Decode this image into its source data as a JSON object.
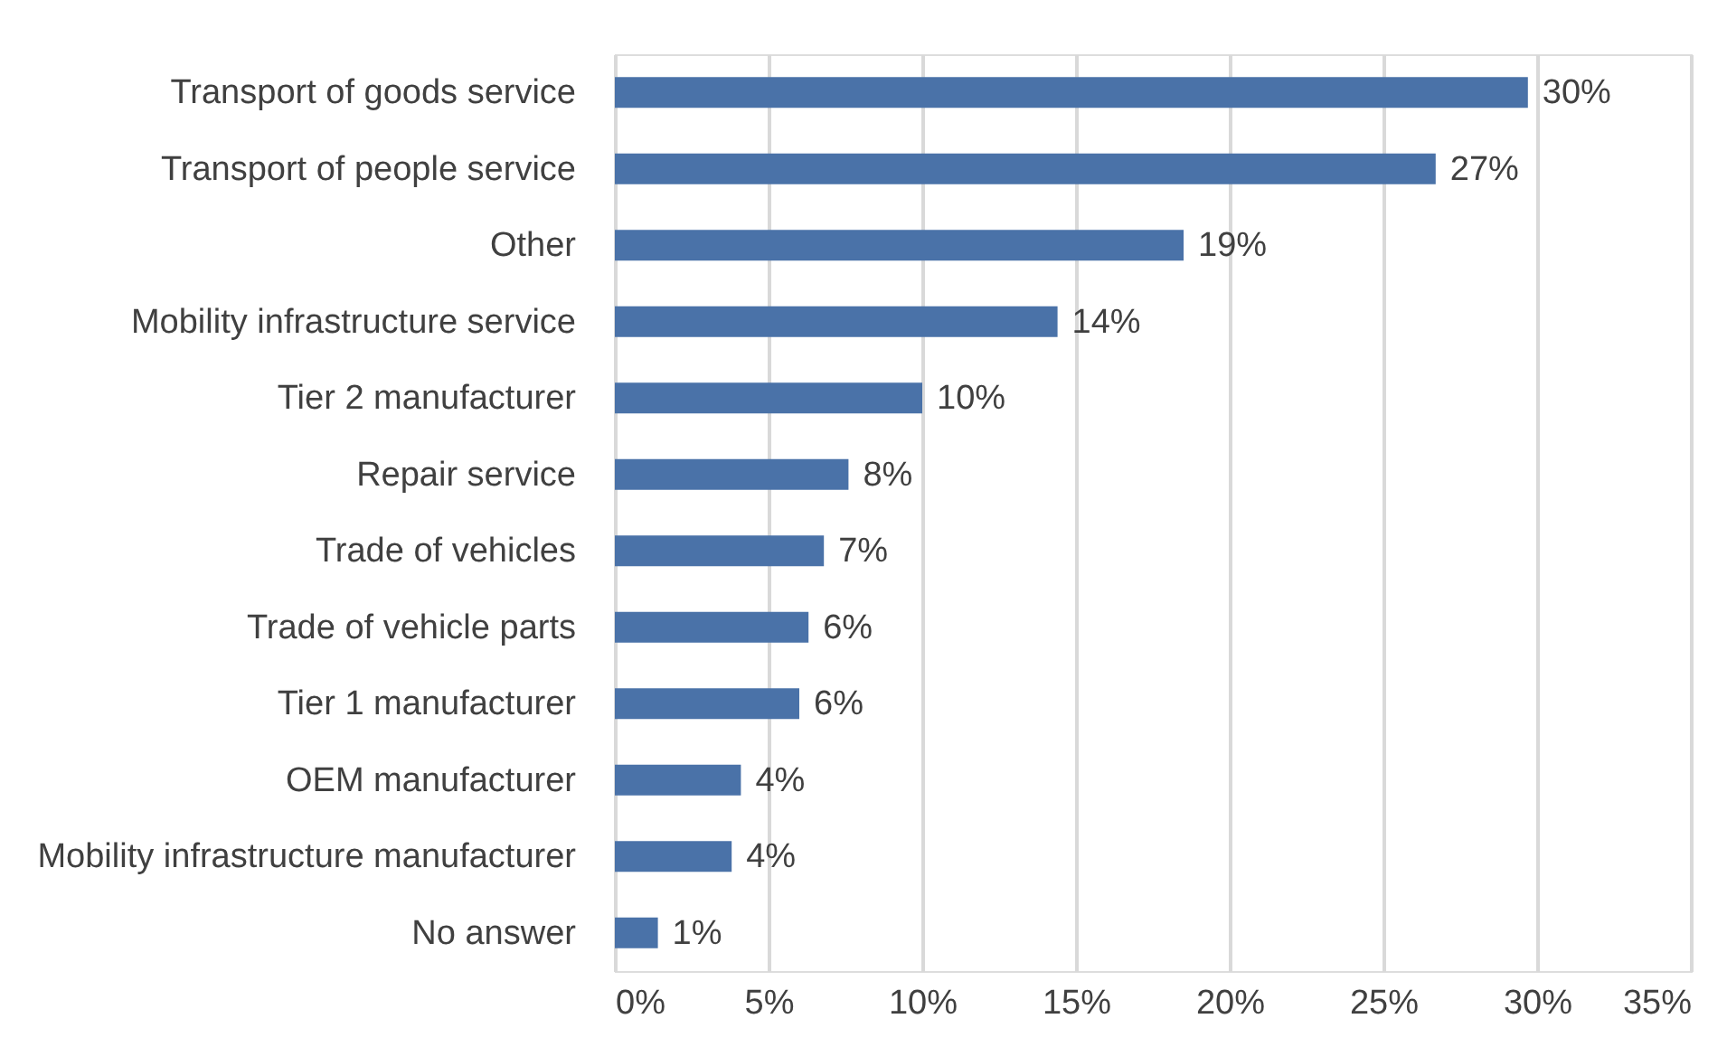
{
  "chart_data": {
    "type": "bar",
    "orientation": "horizontal",
    "categories": [
      "Transport of goods service",
      "Transport of people service",
      "Other",
      "Mobility infrastructure service",
      "Tier 2 manufacturer",
      "Repair service",
      "Trade of vehicles",
      "Trade of vehicle parts",
      "Tier 1 manufacturer",
      "OEM manufacturer",
      "Mobility infrastructure manufacturer",
      "No answer"
    ],
    "values": [
      29.7,
      26.7,
      18.5,
      14.4,
      10.0,
      7.6,
      6.8,
      6.3,
      6.0,
      4.1,
      3.8,
      1.4
    ],
    "value_labels": [
      "30%",
      "27%",
      "19%",
      "14%",
      "10%",
      "8%",
      "7%",
      "6%",
      "6%",
      "4%",
      "4%",
      "1%"
    ],
    "color": "#4a72a8",
    "xlim": [
      0,
      35
    ],
    "xticks": [
      {
        "value": 0,
        "label": "0%"
      },
      {
        "value": 5,
        "label": "5%"
      },
      {
        "value": 10,
        "label": "10%"
      },
      {
        "value": 15,
        "label": "15%"
      },
      {
        "value": 20,
        "label": "20%"
      },
      {
        "value": 25,
        "label": "25%"
      },
      {
        "value": 30,
        "label": "30%"
      },
      {
        "value": 35,
        "label": "35%"
      }
    ],
    "grid": "x"
  }
}
